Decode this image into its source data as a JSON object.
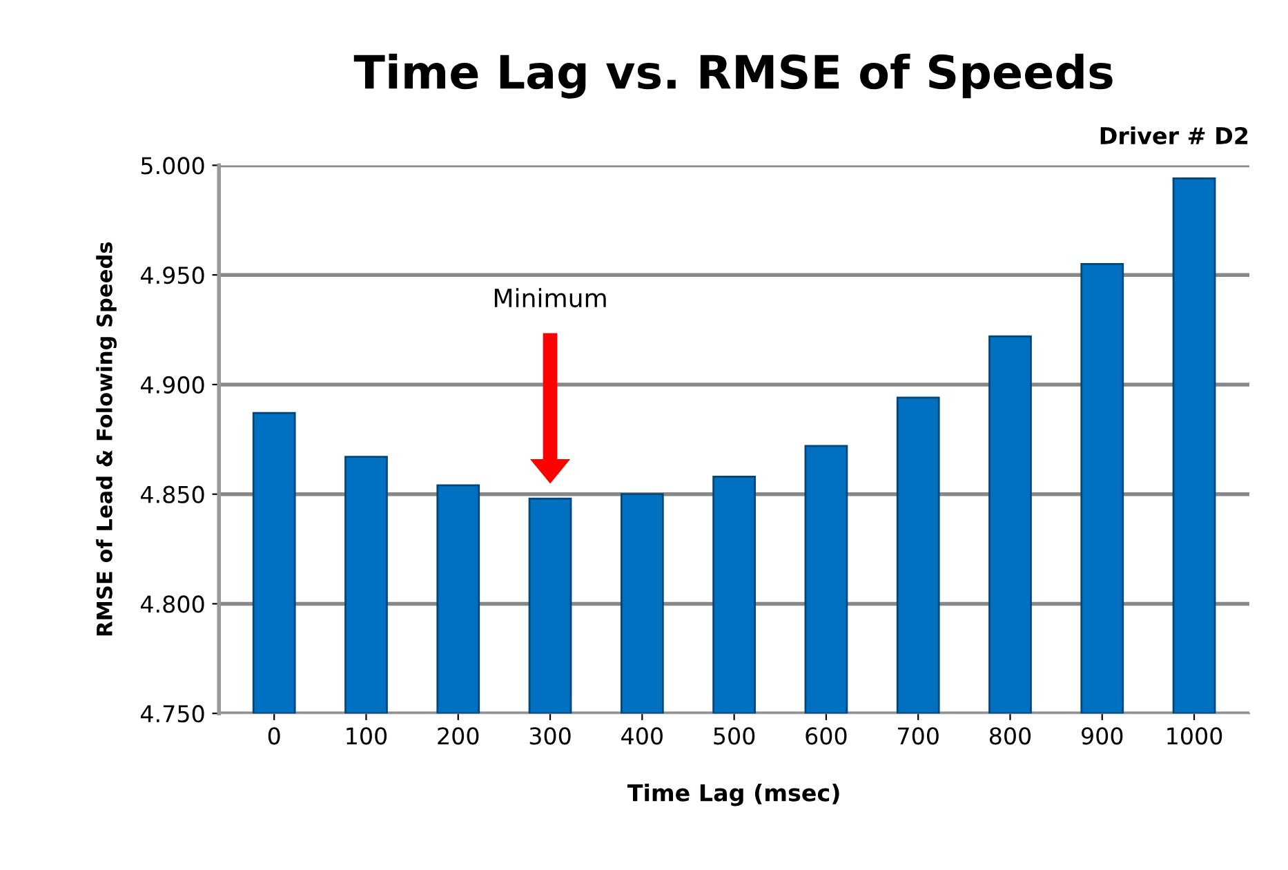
{
  "chart_data": {
    "type": "bar",
    "title": "Time Lag vs. RMSE of Speeds",
    "xlabel": "Time Lag (msec)",
    "ylabel": "RMSE of Lead & Folowing Speeds",
    "categories": [
      "0",
      "100",
      "200",
      "300",
      "400",
      "500",
      "600",
      "700",
      "800",
      "900",
      "1000"
    ],
    "series": [
      {
        "color": "#0070c0",
        "values": [
          4.887,
          4.867,
          4.854,
          4.848,
          4.85,
          4.858,
          4.872,
          4.894,
          4.922,
          4.955,
          4.994
        ]
      }
    ],
    "ylim": [
      4.75,
      5.0
    ],
    "yticks": [
      {
        "value": 4.75,
        "label": "4.750"
      },
      {
        "value": 4.8,
        "label": "4.800"
      },
      {
        "value": 4.85,
        "label": "4.850"
      },
      {
        "value": 4.9,
        "label": "4.900"
      },
      {
        "value": 4.95,
        "label": "4.950"
      },
      {
        "value": 5.0,
        "label": "5.000"
      }
    ],
    "grid": "y",
    "legend": false,
    "annotations": [
      "Minimum",
      "Driver # D2"
    ]
  }
}
